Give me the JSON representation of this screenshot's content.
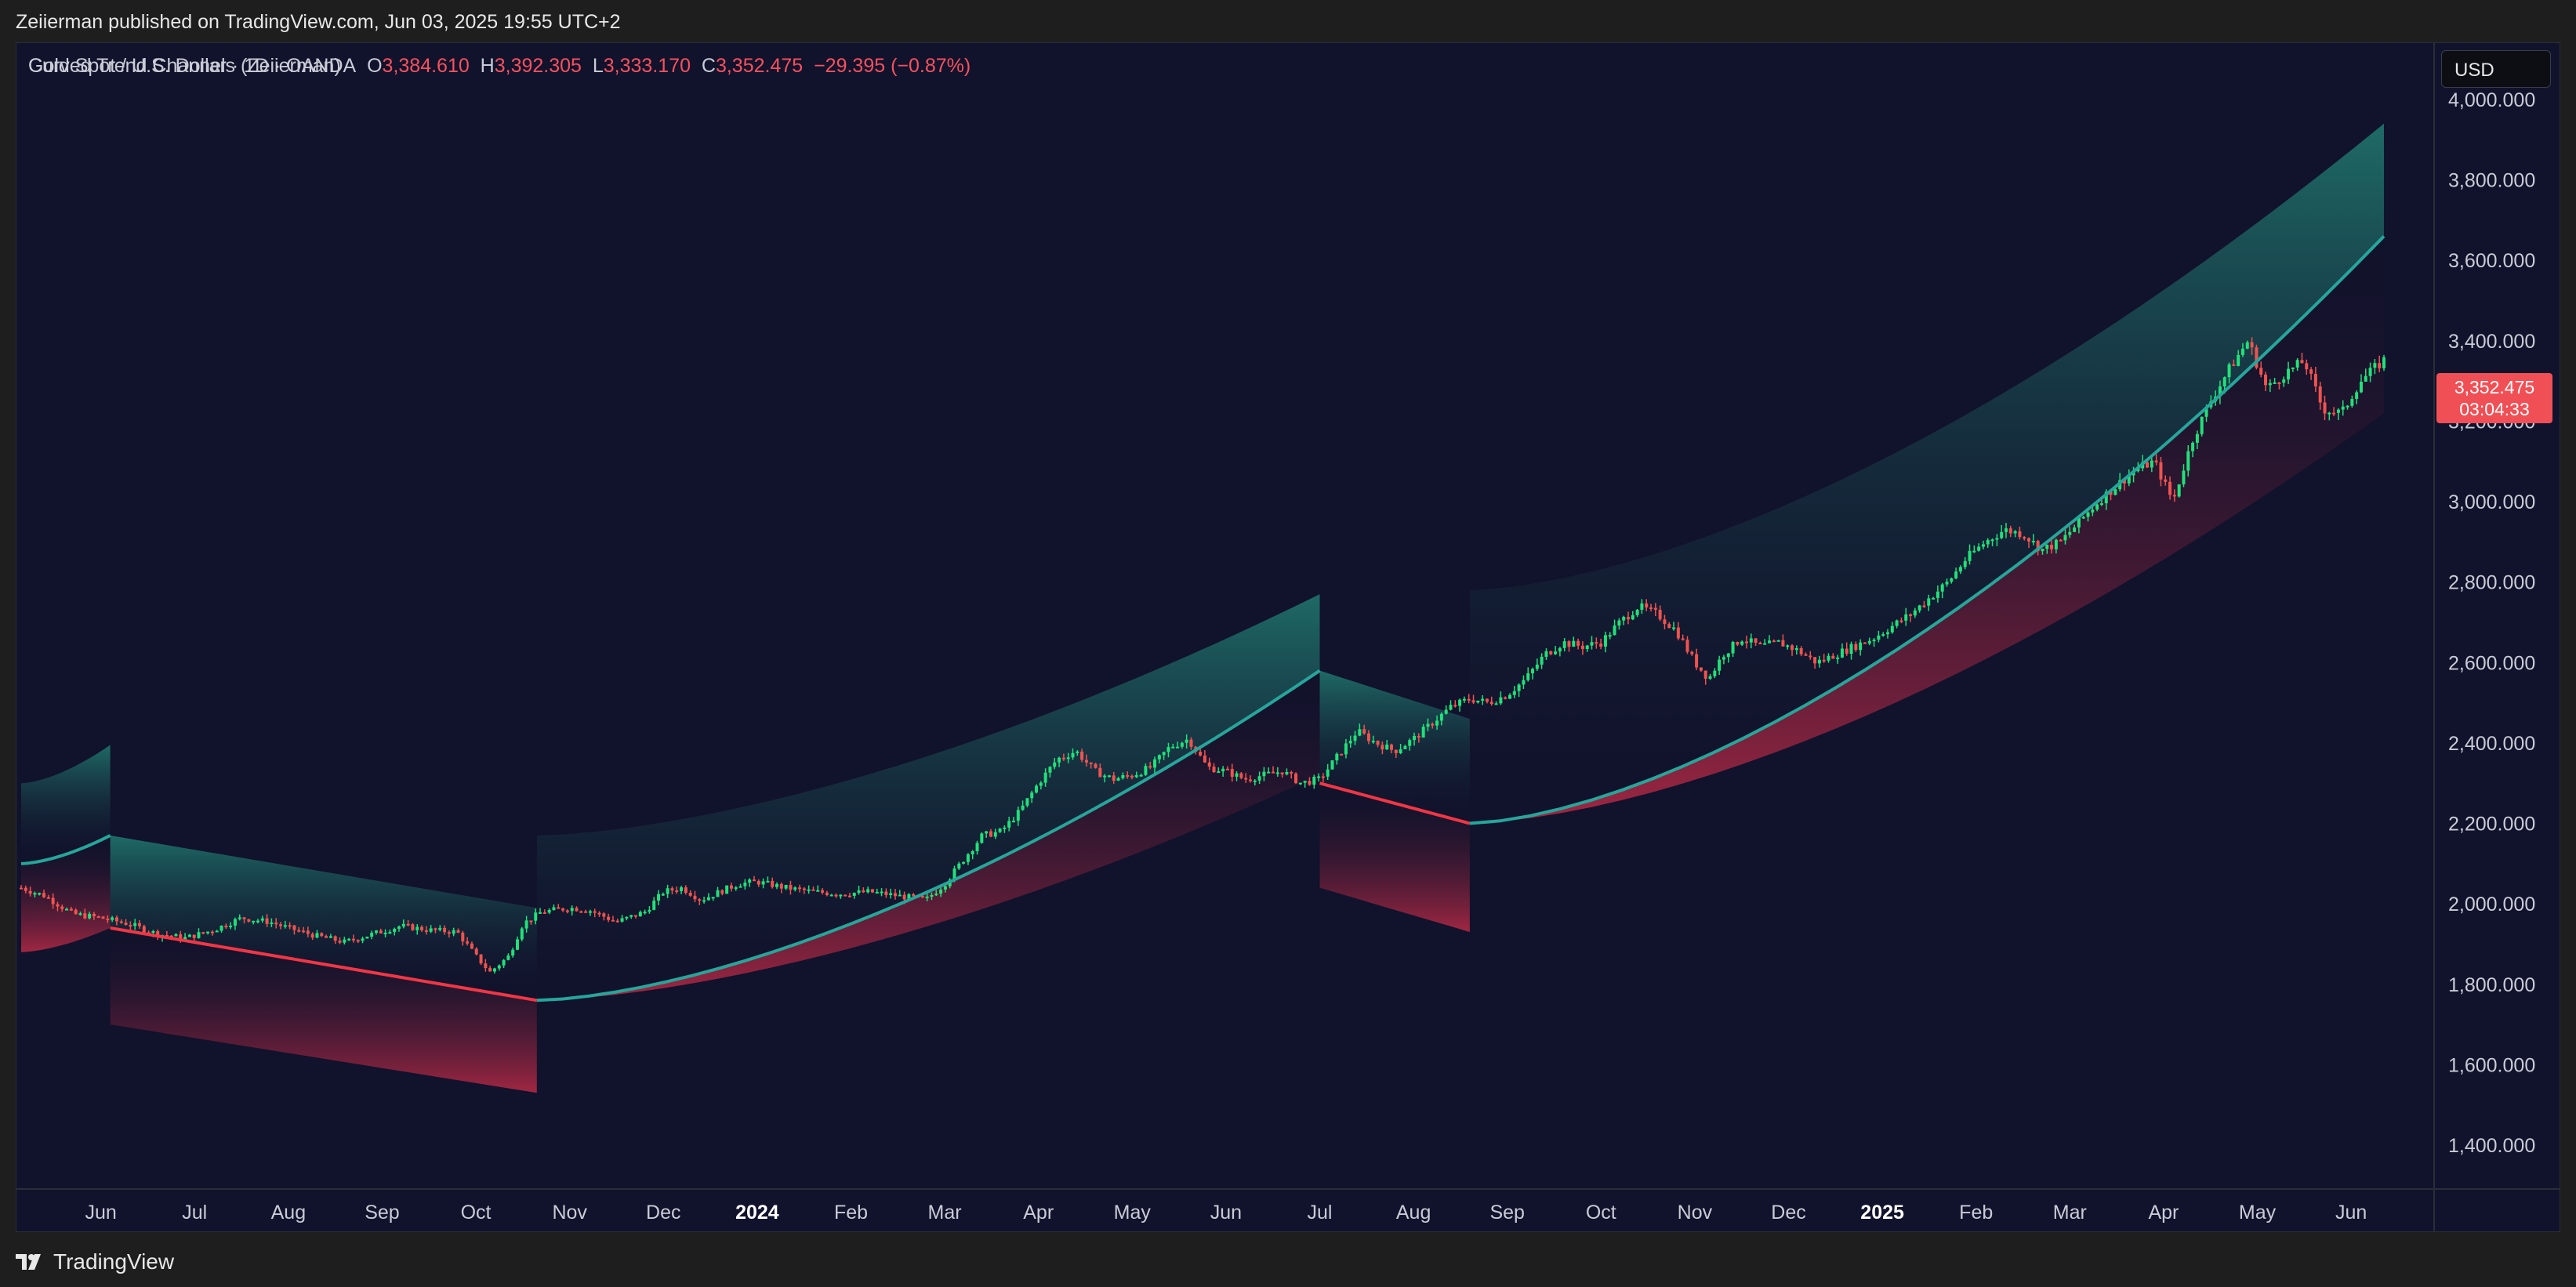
{
  "header": {
    "published": "Zeiierman published on TradingView.com, Jun 03, 2025 19:55 UTC+2"
  },
  "legend": {
    "symbol": "Gold Spot / U.S. Dollar · 1D · OANDA",
    "open_label": "O",
    "open": "3,384.610",
    "high_label": "H",
    "high": "3,392.305",
    "low_label": "L",
    "low": "3,333.170",
    "close_label": "C",
    "close": "3,352.475",
    "change": "−29.395 (−0.87%)",
    "indicator": "Curved Trend Channels (Zeiierman)"
  },
  "currency_button": "USD",
  "last_price": {
    "price": "3,352.475",
    "countdown": "03:04:33"
  },
  "footer": {
    "brand": "TradingView"
  },
  "colors": {
    "up": "#22e07a",
    "down": "#ef5350",
    "mid_up": "#26a69a",
    "mid_down": "#f23645",
    "bg": "#11122b"
  },
  "chart_data": {
    "type": "line",
    "title": "",
    "y_tick_labels": [
      "1,400.000",
      "1,600.000",
      "1,800.000",
      "2,000.000",
      "2,200.000",
      "2,400.000",
      "2,600.000",
      "2,800.000",
      "3,000.000",
      "3,200.000",
      "3,400.000",
      "3,600.000",
      "3,800.000",
      "4,000.000"
    ],
    "ylim": [
      1200,
      4200
    ],
    "x_ticks": [
      {
        "label": "Jun",
        "t": 1.0,
        "bold": false
      },
      {
        "label": "Jul",
        "t": 2.0,
        "bold": false
      },
      {
        "label": "Aug",
        "t": 3.0,
        "bold": false
      },
      {
        "label": "Sep",
        "t": 4.0,
        "bold": false
      },
      {
        "label": "Oct",
        "t": 5.0,
        "bold": false
      },
      {
        "label": "Nov",
        "t": 6.0,
        "bold": false
      },
      {
        "label": "Dec",
        "t": 7.0,
        "bold": false
      },
      {
        "label": "2024",
        "t": 8.0,
        "bold": true
      },
      {
        "label": "Feb",
        "t": 9.0,
        "bold": false
      },
      {
        "label": "Mar",
        "t": 10.0,
        "bold": false
      },
      {
        "label": "Apr",
        "t": 11.0,
        "bold": false
      },
      {
        "label": "May",
        "t": 12.0,
        "bold": false
      },
      {
        "label": "Jun",
        "t": 13.0,
        "bold": false
      },
      {
        "label": "Jul",
        "t": 14.0,
        "bold": false
      },
      {
        "label": "Aug",
        "t": 15.0,
        "bold": false
      },
      {
        "label": "Sep",
        "t": 16.0,
        "bold": false
      },
      {
        "label": "Oct",
        "t": 17.0,
        "bold": false
      },
      {
        "label": "Nov",
        "t": 18.0,
        "bold": false
      },
      {
        "label": "Dec",
        "t": 19.0,
        "bold": false
      },
      {
        "label": "2025",
        "t": 20.0,
        "bold": true
      },
      {
        "label": "Feb",
        "t": 21.0,
        "bold": false
      },
      {
        "label": "Mar",
        "t": 22.0,
        "bold": false
      },
      {
        "label": "Apr",
        "t": 23.0,
        "bold": false
      },
      {
        "label": "May",
        "t": 24.0,
        "bold": false
      },
      {
        "label": "Jun",
        "t": 25.0,
        "bold": false
      }
    ],
    "x_range": [
      0.15,
      25.35
    ],
    "price_series": [
      [
        0.15,
        2040
      ],
      [
        0.4,
        2020
      ],
      [
        0.7,
        1975
      ],
      [
        1.0,
        1965
      ],
      [
        1.3,
        1950
      ],
      [
        1.6,
        1925
      ],
      [
        1.9,
        1915
      ],
      [
        2.2,
        1935
      ],
      [
        2.5,
        1965
      ],
      [
        2.8,
        1955
      ],
      [
        3.0,
        1940
      ],
      [
        3.3,
        1920
      ],
      [
        3.6,
        1905
      ],
      [
        3.9,
        1925
      ],
      [
        4.2,
        1945
      ],
      [
        4.5,
        1935
      ],
      [
        4.8,
        1930
      ],
      [
        5.0,
        1870
      ],
      [
        5.15,
        1830
      ],
      [
        5.35,
        1870
      ],
      [
        5.5,
        1950
      ],
      [
        5.7,
        1980
      ],
      [
        6.0,
        1990
      ],
      [
        6.2,
        1985
      ],
      [
        6.5,
        1955
      ],
      [
        6.8,
        1980
      ],
      [
        7.0,
        2030
      ],
      [
        7.2,
        2040
      ],
      [
        7.4,
        2010
      ],
      [
        7.6,
        2030
      ],
      [
        7.8,
        2050
      ],
      [
        8.0,
        2055
      ],
      [
        8.3,
        2040
      ],
      [
        8.6,
        2030
      ],
      [
        8.9,
        2025
      ],
      [
        9.2,
        2030
      ],
      [
        9.5,
        2020
      ],
      [
        9.8,
        2010
      ],
      [
        10.0,
        2050
      ],
      [
        10.2,
        2110
      ],
      [
        10.4,
        2170
      ],
      [
        10.6,
        2180
      ],
      [
        10.8,
        2230
      ],
      [
        11.0,
        2300
      ],
      [
        11.2,
        2360
      ],
      [
        11.4,
        2380
      ],
      [
        11.6,
        2330
      ],
      [
        11.8,
        2310
      ],
      [
        12.0,
        2320
      ],
      [
        12.2,
        2340
      ],
      [
        12.4,
        2390
      ],
      [
        12.6,
        2410
      ],
      [
        12.8,
        2340
      ],
      [
        13.0,
        2330
      ],
      [
        13.2,
        2310
      ],
      [
        13.4,
        2320
      ],
      [
        13.6,
        2330
      ],
      [
        13.8,
        2300
      ],
      [
        14.0,
        2310
      ],
      [
        14.2,
        2370
      ],
      [
        14.4,
        2430
      ],
      [
        14.6,
        2400
      ],
      [
        14.8,
        2380
      ],
      [
        15.0,
        2410
      ],
      [
        15.2,
        2450
      ],
      [
        15.4,
        2490
      ],
      [
        15.6,
        2510
      ],
      [
        15.8,
        2500
      ],
      [
        16.0,
        2520
      ],
      [
        16.2,
        2560
      ],
      [
        16.4,
        2620
      ],
      [
        16.6,
        2650
      ],
      [
        16.8,
        2640
      ],
      [
        17.0,
        2650
      ],
      [
        17.2,
        2700
      ],
      [
        17.4,
        2740
      ],
      [
        17.6,
        2720
      ],
      [
        17.8,
        2680
      ],
      [
        18.0,
        2600
      ],
      [
        18.15,
        2560
      ],
      [
        18.3,
        2620
      ],
      [
        18.5,
        2660
      ],
      [
        18.7,
        2640
      ],
      [
        18.9,
        2650
      ],
      [
        19.1,
        2630
      ],
      [
        19.3,
        2600
      ],
      [
        19.5,
        2620
      ],
      [
        19.7,
        2640
      ],
      [
        19.9,
        2660
      ],
      [
        20.1,
        2690
      ],
      [
        20.3,
        2720
      ],
      [
        20.5,
        2760
      ],
      [
        20.7,
        2800
      ],
      [
        20.9,
        2860
      ],
      [
        21.1,
        2900
      ],
      [
        21.3,
        2930
      ],
      [
        21.5,
        2920
      ],
      [
        21.7,
        2880
      ],
      [
        21.9,
        2900
      ],
      [
        22.1,
        2950
      ],
      [
        22.3,
        3000
      ],
      [
        22.5,
        3040
      ],
      [
        22.7,
        3080
      ],
      [
        22.9,
        3100
      ],
      [
        23.1,
        3000
      ],
      [
        23.3,
        3150
      ],
      [
        23.5,
        3250
      ],
      [
        23.7,
        3330
      ],
      [
        23.9,
        3400
      ],
      [
        24.1,
        3280
      ],
      [
        24.3,
        3320
      ],
      [
        24.5,
        3350
      ],
      [
        24.7,
        3230
      ],
      [
        24.9,
        3220
      ],
      [
        25.1,
        3300
      ],
      [
        25.35,
        3352
      ]
    ],
    "channel_segments": [
      {
        "t": [
          0.15,
          1.1
        ],
        "mid": [
          2100,
          2170
        ],
        "upper": [
          2300,
          2395
        ],
        "lower": [
          1880,
          1940
        ],
        "mid_color": "up"
      },
      {
        "t": [
          1.1,
          5.65
        ],
        "mid": [
          1940,
          1760
        ],
        "upper": [
          2170,
          1990
        ],
        "lower": [
          1700,
          1530
        ],
        "mid_color": "down"
      },
      {
        "t": [
          5.65,
          14.0
        ],
        "mid": [
          1760,
          2580
        ],
        "upper": [
          2170,
          2770
        ],
        "lower": [
          1760,
          2320
        ],
        "mid_color": "up"
      },
      {
        "t": [
          14.0,
          15.6
        ],
        "mid": [
          2300,
          2200
        ],
        "upper": [
          2580,
          2460
        ],
        "lower": [
          2040,
          1930
        ],
        "mid_color": "down"
      },
      {
        "t": [
          15.6,
          25.35
        ],
        "mid": [
          2200,
          3660
        ],
        "upper": [
          2780,
          3940
        ],
        "lower": [
          2200,
          3220
        ],
        "mid_color": "up"
      }
    ],
    "grid": false,
    "legend_position": "top-left"
  }
}
